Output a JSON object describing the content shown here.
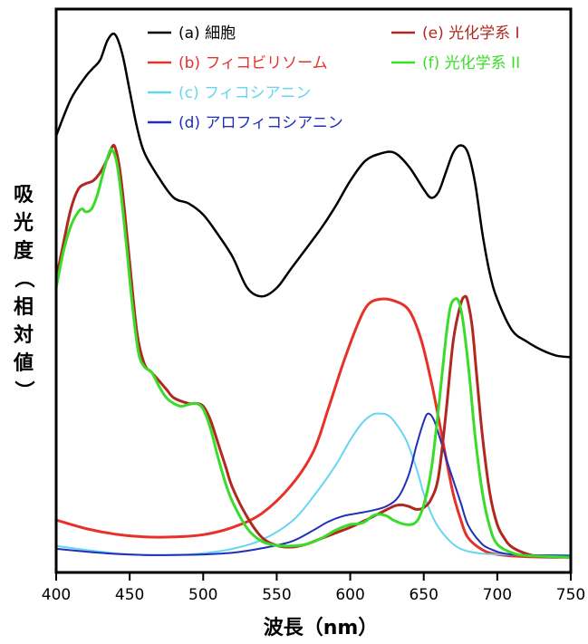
{
  "chart_data": {
    "type": "line",
    "xlabel": "波長（nm）",
    "ylabel_lines": [
      "吸",
      "光",
      "度",
      "（",
      "相",
      "対",
      "値",
      "）"
    ],
    "xlim": [
      400,
      750
    ],
    "ylim": [
      0,
      1
    ],
    "x_ticks": [
      400,
      450,
      500,
      550,
      600,
      650,
      700,
      750
    ],
    "y_ticks_shown": false,
    "grid": false,
    "legend_placement": "top",
    "series": [
      {
        "name": "(a) 細胞",
        "color": "#000000",
        "width": 2.5,
        "points": [
          [
            400,
            0.775
          ],
          [
            410,
            0.84
          ],
          [
            420,
            0.88
          ],
          [
            425,
            0.895
          ],
          [
            430,
            0.91
          ],
          [
            435,
            0.945
          ],
          [
            440,
            0.955
          ],
          [
            445,
            0.92
          ],
          [
            450,
            0.855
          ],
          [
            455,
            0.79
          ],
          [
            460,
            0.745
          ],
          [
            470,
            0.7
          ],
          [
            480,
            0.665
          ],
          [
            490,
            0.655
          ],
          [
            500,
            0.635
          ],
          [
            510,
            0.6
          ],
          [
            520,
            0.56
          ],
          [
            530,
            0.505
          ],
          [
            540,
            0.49
          ],
          [
            550,
            0.505
          ],
          [
            560,
            0.54
          ],
          [
            580,
            0.61
          ],
          [
            590,
            0.65
          ],
          [
            600,
            0.695
          ],
          [
            610,
            0.73
          ],
          [
            620,
            0.743
          ],
          [
            630,
            0.745
          ],
          [
            640,
            0.72
          ],
          [
            650,
            0.68
          ],
          [
            655,
            0.665
          ],
          [
            660,
            0.675
          ],
          [
            665,
            0.71
          ],
          [
            670,
            0.745
          ],
          [
            675,
            0.758
          ],
          [
            680,
            0.745
          ],
          [
            685,
            0.69
          ],
          [
            690,
            0.6
          ],
          [
            695,
            0.53
          ],
          [
            700,
            0.485
          ],
          [
            710,
            0.43
          ],
          [
            720,
            0.41
          ],
          [
            730,
            0.395
          ],
          [
            740,
            0.385
          ],
          [
            750,
            0.382
          ]
        ]
      },
      {
        "name": "(b) フィコビリソーム",
        "color": "#e8302a",
        "width": 3,
        "points": [
          [
            400,
            0.093
          ],
          [
            420,
            0.078
          ],
          [
            440,
            0.068
          ],
          [
            460,
            0.063
          ],
          [
            480,
            0.063
          ],
          [
            500,
            0.067
          ],
          [
            520,
            0.08
          ],
          [
            540,
            0.105
          ],
          [
            560,
            0.155
          ],
          [
            575,
            0.215
          ],
          [
            585,
            0.29
          ],
          [
            595,
            0.37
          ],
          [
            605,
            0.44
          ],
          [
            612,
            0.475
          ],
          [
            620,
            0.485
          ],
          [
            630,
            0.482
          ],
          [
            640,
            0.465
          ],
          [
            648,
            0.415
          ],
          [
            655,
            0.34
          ],
          [
            660,
            0.275
          ],
          [
            665,
            0.205
          ],
          [
            670,
            0.14
          ],
          [
            675,
            0.095
          ],
          [
            680,
            0.062
          ],
          [
            690,
            0.04
          ],
          [
            700,
            0.032
          ],
          [
            720,
            0.028
          ],
          [
            750,
            0.027
          ]
        ]
      },
      {
        "name": "(c) フィコシアニン",
        "color": "#66d6ee",
        "width": 2,
        "points": [
          [
            400,
            0.047
          ],
          [
            420,
            0.04
          ],
          [
            440,
            0.034
          ],
          [
            460,
            0.031
          ],
          [
            480,
            0.031
          ],
          [
            500,
            0.034
          ],
          [
            520,
            0.042
          ],
          [
            540,
            0.058
          ],
          [
            560,
            0.09
          ],
          [
            575,
            0.135
          ],
          [
            590,
            0.19
          ],
          [
            600,
            0.235
          ],
          [
            608,
            0.265
          ],
          [
            615,
            0.28
          ],
          [
            620,
            0.282
          ],
          [
            625,
            0.28
          ],
          [
            630,
            0.268
          ],
          [
            638,
            0.235
          ],
          [
            645,
            0.185
          ],
          [
            650,
            0.14
          ],
          [
            655,
            0.105
          ],
          [
            660,
            0.08
          ],
          [
            668,
            0.055
          ],
          [
            675,
            0.042
          ],
          [
            685,
            0.035
          ],
          [
            700,
            0.032
          ],
          [
            750,
            0.03
          ]
        ]
      },
      {
        "name": "(d) アロフィコシアニン",
        "color": "#1f2fb8",
        "width": 2,
        "points": [
          [
            400,
            0.042
          ],
          [
            420,
            0.037
          ],
          [
            440,
            0.033
          ],
          [
            460,
            0.031
          ],
          [
            480,
            0.031
          ],
          [
            500,
            0.032
          ],
          [
            520,
            0.035
          ],
          [
            540,
            0.043
          ],
          [
            560,
            0.055
          ],
          [
            575,
            0.075
          ],
          [
            585,
            0.09
          ],
          [
            595,
            0.1
          ],
          [
            605,
            0.105
          ],
          [
            615,
            0.11
          ],
          [
            625,
            0.118
          ],
          [
            633,
            0.135
          ],
          [
            640,
            0.175
          ],
          [
            645,
            0.225
          ],
          [
            650,
            0.268
          ],
          [
            653,
            0.282
          ],
          [
            657,
            0.27
          ],
          [
            662,
            0.23
          ],
          [
            668,
            0.18
          ],
          [
            675,
            0.125
          ],
          [
            680,
            0.085
          ],
          [
            688,
            0.055
          ],
          [
            695,
            0.042
          ],
          [
            710,
            0.032
          ],
          [
            750,
            0.03
          ]
        ]
      },
      {
        "name": "(e) 光化学系 I",
        "color": "#b02820",
        "width": 3,
        "points": [
          [
            400,
            0.52
          ],
          [
            405,
            0.585
          ],
          [
            410,
            0.645
          ],
          [
            415,
            0.68
          ],
          [
            420,
            0.69
          ],
          [
            425,
            0.695
          ],
          [
            430,
            0.71
          ],
          [
            435,
            0.735
          ],
          [
            438,
            0.755
          ],
          [
            440,
            0.755
          ],
          [
            443,
            0.72
          ],
          [
            446,
            0.655
          ],
          [
            450,
            0.55
          ],
          [
            455,
            0.425
          ],
          [
            460,
            0.37
          ],
          [
            465,
            0.355
          ],
          [
            470,
            0.34
          ],
          [
            475,
            0.325
          ],
          [
            480,
            0.31
          ],
          [
            490,
            0.3
          ],
          [
            495,
            0.3
          ],
          [
            500,
            0.295
          ],
          [
            505,
            0.27
          ],
          [
            510,
            0.23
          ],
          [
            515,
            0.19
          ],
          [
            520,
            0.15
          ],
          [
            530,
            0.098
          ],
          [
            540,
            0.062
          ],
          [
            550,
            0.048
          ],
          [
            560,
            0.045
          ],
          [
            570,
            0.05
          ],
          [
            580,
            0.06
          ],
          [
            590,
            0.07
          ],
          [
            600,
            0.08
          ],
          [
            610,
            0.092
          ],
          [
            620,
            0.105
          ],
          [
            630,
            0.118
          ],
          [
            635,
            0.12
          ],
          [
            640,
            0.117
          ],
          [
            645,
            0.112
          ],
          [
            650,
            0.115
          ],
          [
            655,
            0.13
          ],
          [
            660,
            0.17
          ],
          [
            665,
            0.28
          ],
          [
            670,
            0.41
          ],
          [
            675,
            0.475
          ],
          [
            678,
            0.49
          ],
          [
            680,
            0.48
          ],
          [
            683,
            0.435
          ],
          [
            686,
            0.35
          ],
          [
            690,
            0.24
          ],
          [
            695,
            0.14
          ],
          [
            700,
            0.085
          ],
          [
            705,
            0.06
          ],
          [
            710,
            0.045
          ],
          [
            720,
            0.033
          ],
          [
            730,
            0.028
          ],
          [
            750,
            0.027
          ]
        ]
      },
      {
        "name": "(f) 光化学系 II",
        "color": "#3adc2a",
        "width": 3,
        "points": [
          [
            400,
            0.505
          ],
          [
            405,
            0.57
          ],
          [
            410,
            0.615
          ],
          [
            415,
            0.64
          ],
          [
            418,
            0.645
          ],
          [
            420,
            0.64
          ],
          [
            424,
            0.645
          ],
          [
            428,
            0.67
          ],
          [
            432,
            0.71
          ],
          [
            436,
            0.745
          ],
          [
            438,
            0.75
          ],
          [
            441,
            0.73
          ],
          [
            444,
            0.675
          ],
          [
            448,
            0.575
          ],
          [
            452,
            0.47
          ],
          [
            456,
            0.39
          ],
          [
            460,
            0.365
          ],
          [
            465,
            0.355
          ],
          [
            470,
            0.33
          ],
          [
            475,
            0.31
          ],
          [
            480,
            0.3
          ],
          [
            485,
            0.295
          ],
          [
            490,
            0.298
          ],
          [
            495,
            0.3
          ],
          [
            500,
            0.29
          ],
          [
            505,
            0.255
          ],
          [
            510,
            0.205
          ],
          [
            515,
            0.16
          ],
          [
            520,
            0.125
          ],
          [
            530,
            0.078
          ],
          [
            540,
            0.055
          ],
          [
            550,
            0.048
          ],
          [
            560,
            0.047
          ],
          [
            570,
            0.05
          ],
          [
            580,
            0.06
          ],
          [
            590,
            0.075
          ],
          [
            600,
            0.085
          ],
          [
            605,
            0.086
          ],
          [
            610,
            0.09
          ],
          [
            615,
            0.1
          ],
          [
            620,
            0.103
          ],
          [
            625,
            0.1
          ],
          [
            630,
            0.092
          ],
          [
            638,
            0.085
          ],
          [
            645,
            0.09
          ],
          [
            650,
            0.12
          ],
          [
            655,
            0.18
          ],
          [
            660,
            0.29
          ],
          [
            665,
            0.415
          ],
          [
            668,
            0.47
          ],
          [
            671,
            0.485
          ],
          [
            674,
            0.48
          ],
          [
            677,
            0.44
          ],
          [
            681,
            0.35
          ],
          [
            685,
            0.24
          ],
          [
            690,
            0.14
          ],
          [
            695,
            0.08
          ],
          [
            700,
            0.05
          ],
          [
            710,
            0.035
          ],
          [
            720,
            0.03
          ],
          [
            750,
            0.027
          ]
        ]
      }
    ],
    "legend": [
      {
        "label": "(a) 細胞",
        "color": "#000000"
      },
      {
        "label": "(b) フィコビリソーム",
        "color": "#e8302a"
      },
      {
        "label": "(c) フィコシアニン",
        "color": "#66d6ee"
      },
      {
        "label": "(d) アロフィコシアニン",
        "color": "#1f2fb8"
      },
      {
        "label": "(e) 光化学系 I",
        "color": "#b02820"
      },
      {
        "label": "(f) 光化学系 II",
        "color": "#3adc2a"
      }
    ]
  }
}
